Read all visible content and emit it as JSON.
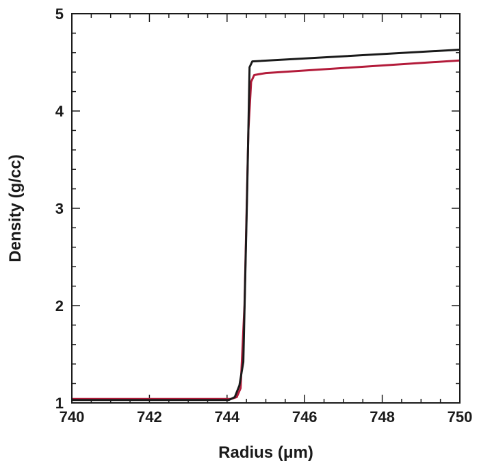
{
  "chart_data": {
    "type": "line",
    "title": "",
    "xlabel": "Radius (μm)",
    "ylabel": "Density (g/cc)",
    "xlim": [
      740,
      750
    ],
    "ylim": [
      1,
      5
    ],
    "x_ticks": [
      740,
      742,
      744,
      746,
      748,
      750
    ],
    "y_ticks": [
      1,
      2,
      3,
      4,
      5
    ],
    "x_minor_step": 0.5,
    "y_minor_step": 0.2,
    "grid": false,
    "legend": "none",
    "series": [
      {
        "color": "#b31b3a",
        "x": [
          740,
          744.1,
          744.25,
          744.35,
          744.45,
          744.55,
          744.62,
          744.7,
          745,
          750
        ],
        "y": [
          1.04,
          1.04,
          1.06,
          1.15,
          2.0,
          3.8,
          4.3,
          4.37,
          4.39,
          4.52
        ]
      },
      {
        "color": "#1a1a1a",
        "x": [
          740,
          744.05,
          744.2,
          744.32,
          744.42,
          744.52,
          744.58,
          744.65,
          750
        ],
        "y": [
          1.03,
          1.03,
          1.06,
          1.18,
          1.42,
          3.2,
          4.45,
          4.51,
          4.63
        ]
      }
    ]
  }
}
